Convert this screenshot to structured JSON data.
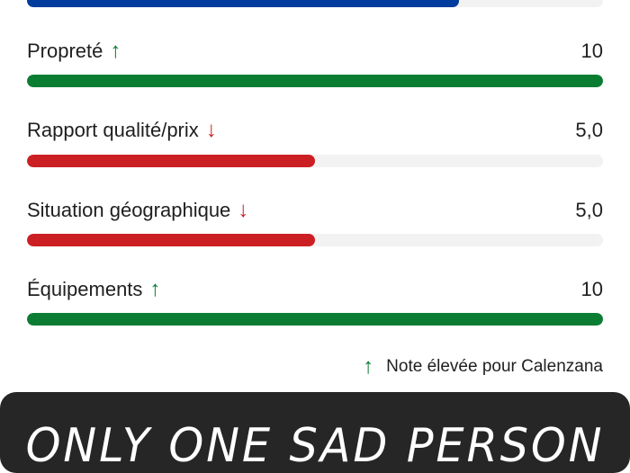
{
  "colors": {
    "up": "#0a7d33",
    "down": "#cc1f24",
    "blue": "#003c9e",
    "track": "#f2f2f2"
  },
  "top_bar": {
    "fill_fraction": 0.75,
    "color": "#003c9e"
  },
  "ratings": [
    {
      "label": "Propreté",
      "trend": "up",
      "trend_icon": "arrow-up-icon",
      "value": "10",
      "fill_fraction": 1.0
    },
    {
      "label": "Rapport qualité/prix",
      "trend": "down",
      "trend_icon": "arrow-down-icon",
      "value": "5,0",
      "fill_fraction": 0.5
    },
    {
      "label": "Situation géographique",
      "trend": "down",
      "trend_icon": "arrow-down-icon",
      "value": "5,0",
      "fill_fraction": 0.5
    },
    {
      "label": "Équipements",
      "trend": "up",
      "trend_icon": "arrow-up-icon",
      "value": "10",
      "fill_fraction": 1.0
    }
  ],
  "legend": {
    "icon": "arrow-up-icon",
    "text": "Note élevée pour Calenzana"
  },
  "banner": {
    "text": "ONLY ONE SAD PERSON"
  }
}
